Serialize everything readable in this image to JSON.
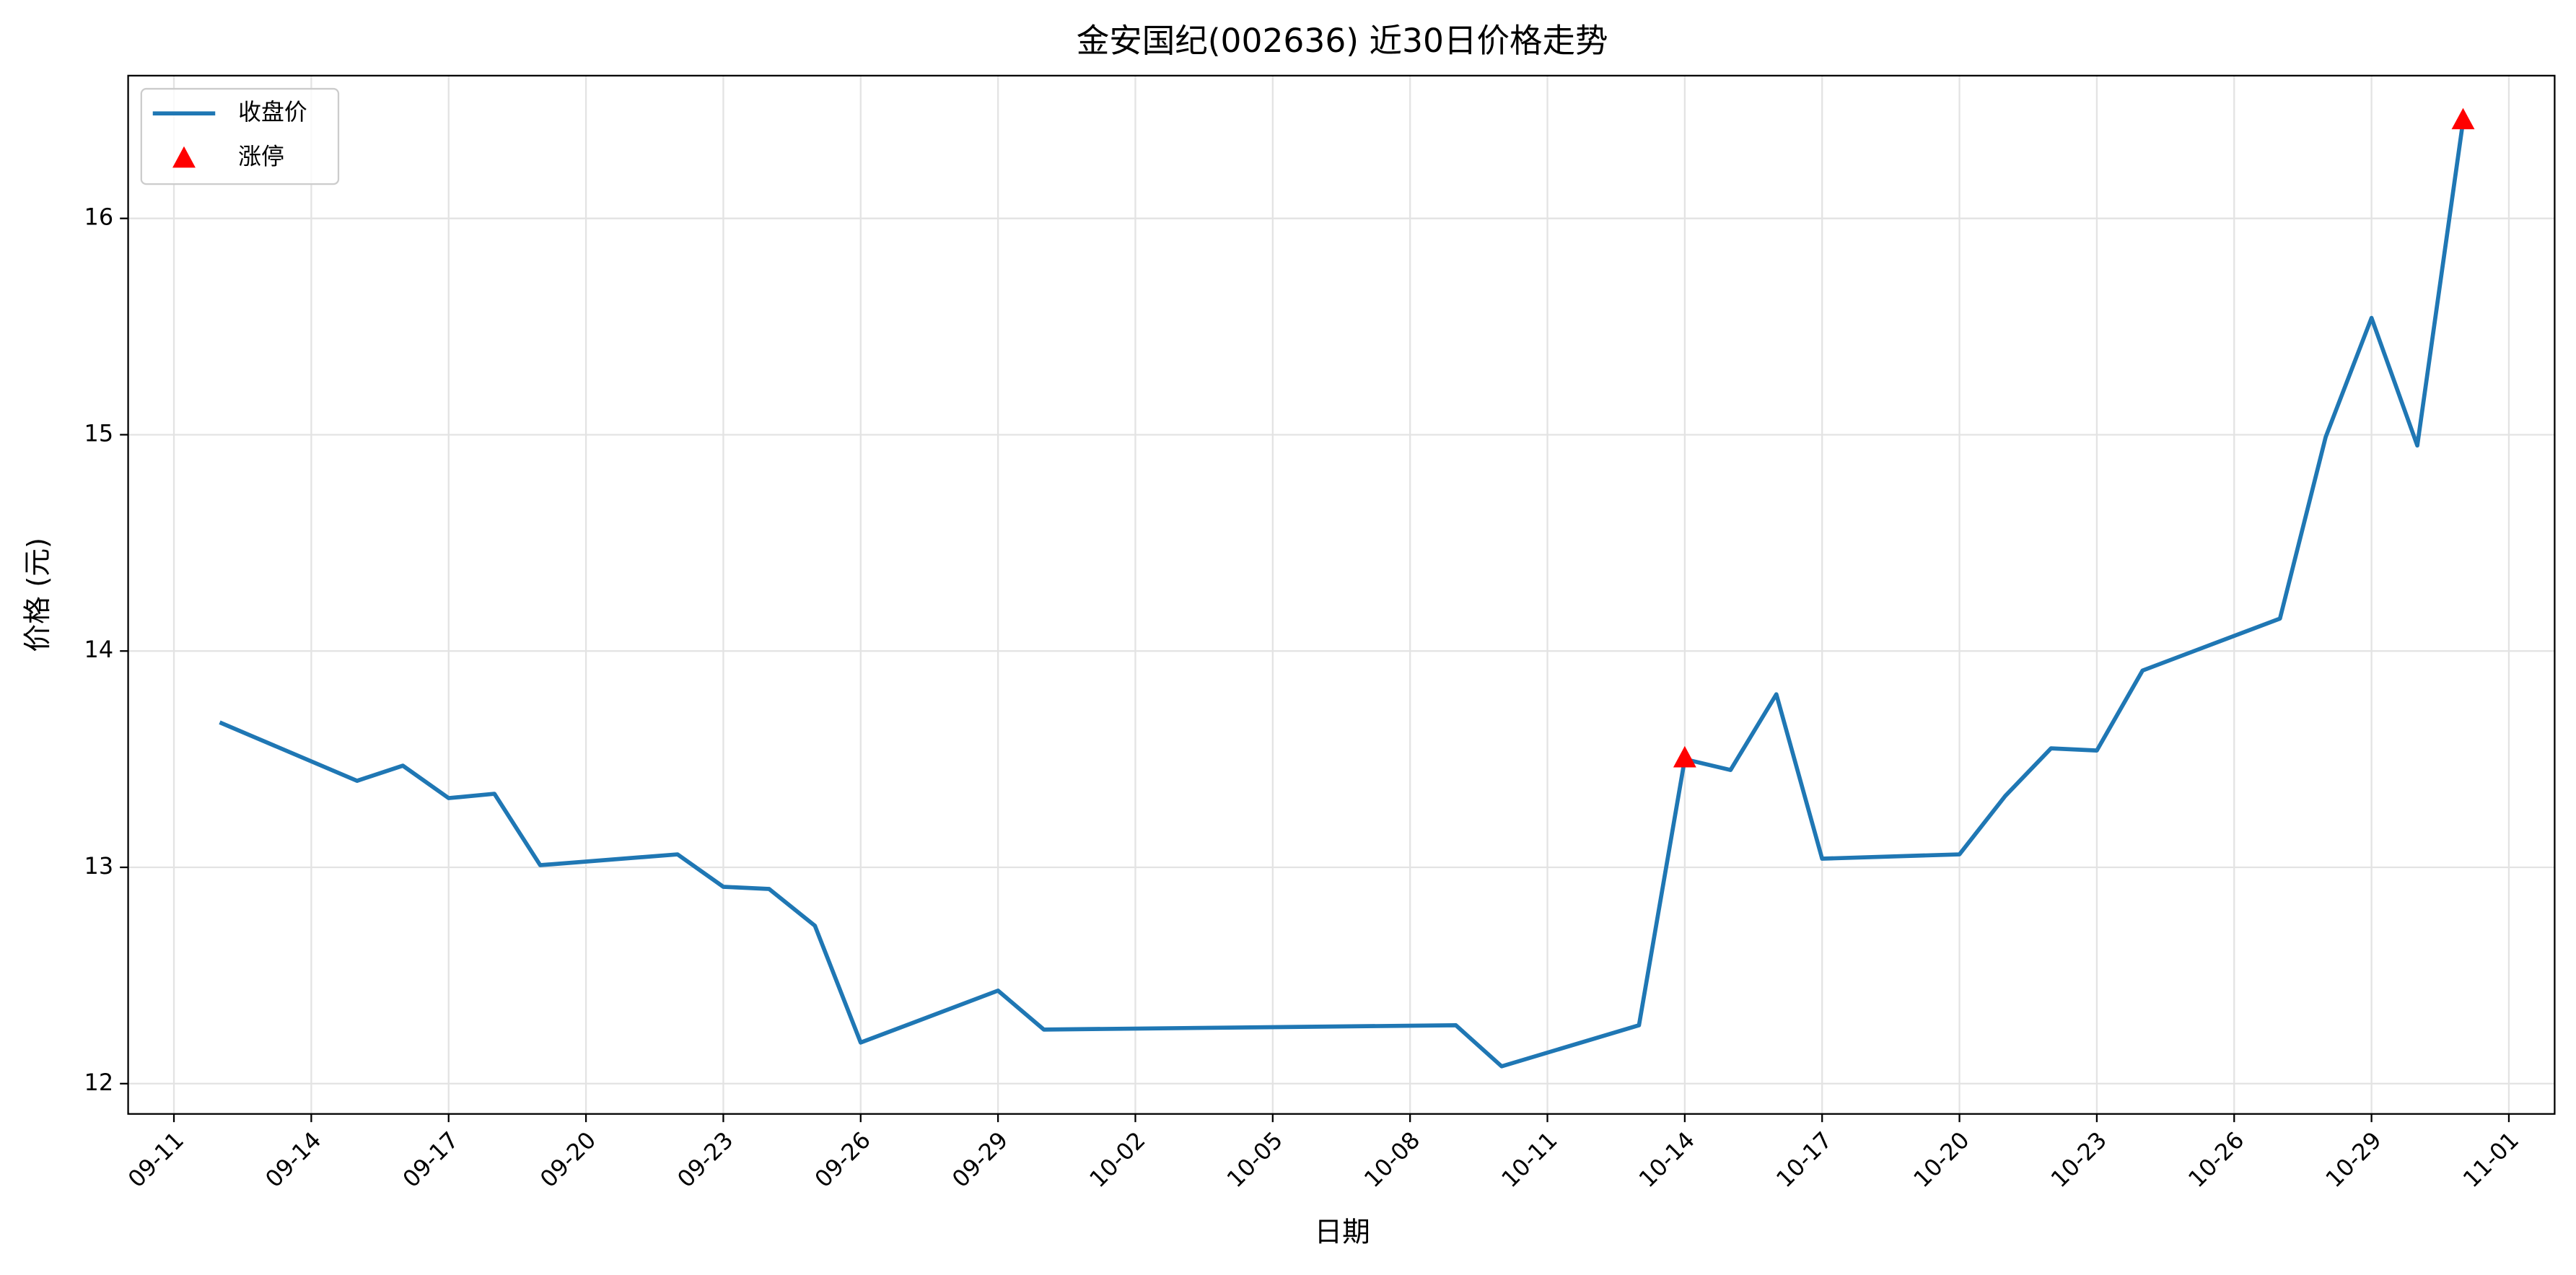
{
  "chart_data": {
    "type": "line",
    "title": "金安国纪(002636) 近30日价格走势",
    "x_label": "日期",
    "y_label": "价格 (元)",
    "series": [
      {
        "name": "收盘价",
        "type": "line",
        "color": "#1f77b4",
        "x": [
          "09-12",
          "09-15",
          "09-16",
          "09-17",
          "09-18",
          "09-19",
          "09-22",
          "09-23",
          "09-24",
          "09-25",
          "09-26",
          "09-29",
          "09-30",
          "10-09",
          "10-10",
          "10-13",
          "10-14",
          "10-15",
          "10-16",
          "10-17",
          "10-20",
          "10-21",
          "10-22",
          "10-23",
          "10-24",
          "10-27",
          "10-28",
          "10-29",
          "10-30",
          "10-31"
        ],
        "values": [
          13.67,
          13.4,
          13.47,
          13.32,
          13.34,
          13.01,
          13.06,
          12.91,
          12.9,
          12.73,
          12.19,
          12.43,
          12.25,
          12.27,
          12.08,
          12.27,
          13.5,
          13.45,
          13.8,
          13.04,
          13.06,
          13.33,
          13.55,
          13.54,
          13.91,
          14.15,
          14.99,
          15.54,
          14.95,
          16.45
        ]
      },
      {
        "name": "涨停",
        "type": "scatter",
        "color": "#ff0000",
        "x": [
          "10-14",
          "10-31"
        ],
        "values": [
          13.5,
          16.45
        ]
      }
    ],
    "xlim": [
      "09-10",
      "11-02"
    ],
    "xticks": [
      "09-11",
      "09-14",
      "09-17",
      "09-20",
      "09-23",
      "09-26",
      "09-29",
      "10-02",
      "10-05",
      "10-08",
      "10-11",
      "10-14",
      "10-17",
      "10-20",
      "10-23",
      "10-26",
      "10-29",
      "11-01"
    ],
    "ylim": [
      11.86,
      16.66
    ],
    "yticks": [
      12,
      13,
      14,
      15,
      16
    ],
    "grid": true,
    "legend": "upper-left"
  }
}
